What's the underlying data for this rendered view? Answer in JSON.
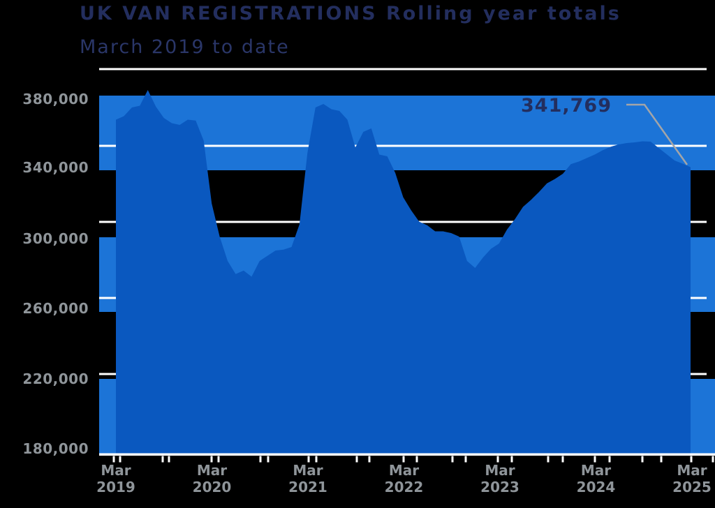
{
  "header": {
    "title": "UK VAN REGISTRATIONS Rolling year totals",
    "subtitle": "March 2019 to date"
  },
  "annotation": {
    "label": "341,769",
    "value": 341769
  },
  "y_axis": {
    "tick_labels": [
      "380,000",
      "340,000",
      "300,000",
      "260,000",
      "220,000",
      "180,000"
    ]
  },
  "x_axis": {
    "tick_labels": [
      {
        "month": "Mar",
        "year": "2019"
      },
      {
        "month": "Mar",
        "year": "2020"
      },
      {
        "month": "Mar",
        "year": "2021"
      },
      {
        "month": "Mar",
        "year": "2022"
      },
      {
        "month": "Mar",
        "year": "2023"
      },
      {
        "month": "Mar",
        "year": "2024"
      },
      {
        "month": "Mar",
        "year": "2025"
      }
    ]
  },
  "colors": {
    "background": "#000000",
    "area_fill": "#0A58BF",
    "band_fill": "#1C74D7",
    "gridline": "#FFFFFF",
    "axis_line": "#FFFFFF",
    "axis_text": "#8F959A",
    "heading_text": "#232E5E",
    "callout_line": "#A3A5A8"
  },
  "chart_data": {
    "type": "area",
    "title": "UK VAN REGISTRATIONS Rolling year totals",
    "subtitle": "March 2019 to date",
    "xlabel": "",
    "ylabel": "",
    "x_start": "2019-03",
    "x_end": "2025-03",
    "frequency": "monthly",
    "ylim": [
      180000,
      400000
    ],
    "y_tick_values": [
      380000,
      340000,
      300000,
      260000,
      220000,
      180000
    ],
    "grid": "horizontal-bands",
    "legend_position": "none",
    "series_name": "UK van registrations, rolling 12-month total",
    "values": [
      369000,
      371000,
      376000,
      377000,
      386000,
      376500,
      370000,
      367000,
      366000,
      369000,
      368500,
      357000,
      321000,
      302000,
      288000,
      280500,
      282500,
      279000,
      288000,
      291000,
      294000,
      294500,
      296000,
      309000,
      350000,
      376000,
      378000,
      375000,
      374000,
      369000,
      353000,
      362000,
      364000,
      349000,
      348000,
      338500,
      324500,
      317000,
      310500,
      308500,
      305000,
      305000,
      304000,
      302000,
      288000,
      284000,
      290000,
      295000,
      298000,
      306000,
      312000,
      319000,
      323000,
      327500,
      332500,
      335000,
      338000,
      343500,
      345000,
      347000,
      349000,
      351500,
      353500,
      354800,
      355600,
      356000,
      356600,
      356400,
      352800,
      349200,
      345600,
      343800,
      341769
    ],
    "annotation": {
      "text": "341,769",
      "value": 341769,
      "position": "2025-03"
    }
  }
}
